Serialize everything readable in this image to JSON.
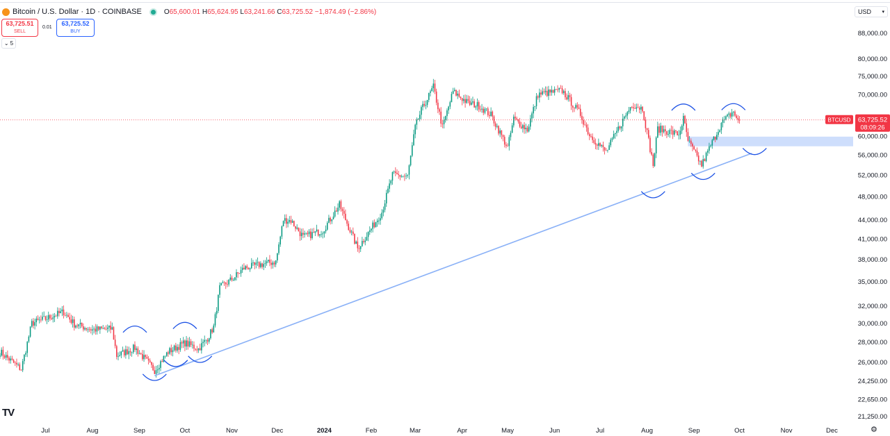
{
  "header": {
    "symbol": "Bitcoin / U.S. Dollar · 1D · COINBASE",
    "o_label": "O",
    "o_value": "65,600.01",
    "h_label": "H",
    "h_value": "65,624.95",
    "l_label": "L",
    "l_value": "63,241.66",
    "c_label": "C",
    "c_value": "63,725.52",
    "change": "−1,874.49 (−2.86%)"
  },
  "trade": {
    "sell_price": "63,725.51",
    "sell_label": "SELL",
    "spread": "0.01",
    "buy_price": "63,725.52",
    "buy_label": "BUY",
    "collapse_label": "5"
  },
  "currency_selector": "USD",
  "price_tag": {
    "symbol": "BTCUSD",
    "price": "63,725.52",
    "countdown": "08:09:26"
  },
  "logo": "TV",
  "colors": {
    "up": "#089981",
    "down": "#f23645",
    "drawing": "#8ab1f7",
    "zone": "#c6d8fb",
    "arc": "#1e53e5"
  },
  "chart_data": {
    "type": "candlestick",
    "y_scale": "log",
    "ylim": [
      20800,
      92000
    ],
    "y_ticks": [
      "88,000.00",
      "80,000.00",
      "75,000.00",
      "70,000.00",
      "60,000.00",
      "56,000.00",
      "52,000.00",
      "48,000.00",
      "44,000.00",
      "41,000.00",
      "38,000.00",
      "35,000.00",
      "32,000.00",
      "30,000.00",
      "28,000.00",
      "26,000.00",
      "24,250.00",
      "22,650.00",
      "21,250.00"
    ],
    "x_ticks": [
      "Jul",
      "Aug",
      "Sep",
      "Oct",
      "Nov",
      "Dec",
      "2024",
      "Feb",
      "Mar",
      "Apr",
      "May",
      "Jun",
      "Jul",
      "Aug",
      "Sep",
      "Oct",
      "Nov",
      "Dec"
    ],
    "x_tick_dates": [
      "2023-07-01",
      "2023-08-01",
      "2023-09-01",
      "2023-10-01",
      "2023-11-01",
      "2023-12-01",
      "2024-01-01",
      "2024-02-01",
      "2024-03-01",
      "2024-04-01",
      "2024-05-01",
      "2024-06-01",
      "2024-07-01",
      "2024-08-01",
      "2024-09-01",
      "2024-10-01",
      "2024-11-01",
      "2024-12-01"
    ],
    "xlim": [
      "2023-06-01",
      "2024-12-15"
    ],
    "last_price": 63725.52,
    "anchors": [
      [
        "2023-06-01",
        27000
      ],
      [
        "2023-06-15",
        25300
      ],
      [
        "2023-06-22",
        30000
      ],
      [
        "2023-07-01",
        30500
      ],
      [
        "2023-07-13",
        31300
      ],
      [
        "2023-07-20",
        29900
      ],
      [
        "2023-08-01",
        29300
      ],
      [
        "2023-08-14",
        29400
      ],
      [
        "2023-08-17",
        26600
      ],
      [
        "2023-08-29",
        27400
      ],
      [
        "2023-09-11",
        25200
      ],
      [
        "2023-09-20",
        27000
      ],
      [
        "2023-10-01",
        27900
      ],
      [
        "2023-10-10",
        27300
      ],
      [
        "2023-10-16",
        28400
      ],
      [
        "2023-10-20",
        29600
      ],
      [
        "2023-10-24",
        34200
      ],
      [
        "2023-11-01",
        35300
      ],
      [
        "2023-11-09",
        36800
      ],
      [
        "2023-11-20",
        37300
      ],
      [
        "2023-11-30",
        37700
      ],
      [
        "2023-12-05",
        44000
      ],
      [
        "2023-12-10",
        43900
      ],
      [
        "2023-12-18",
        41300
      ],
      [
        "2023-12-31",
        42300
      ],
      [
        "2024-01-11",
        46500
      ],
      [
        "2024-01-23",
        39600
      ],
      [
        "2024-02-01",
        42600
      ],
      [
        "2024-02-08",
        45300
      ],
      [
        "2024-02-15",
        52000
      ],
      [
        "2024-02-25",
        51700
      ],
      [
        "2024-03-01",
        62000
      ],
      [
        "2024-03-05",
        66000
      ],
      [
        "2024-03-13",
        72000
      ],
      [
        "2024-03-19",
        62000
      ],
      [
        "2024-03-26",
        70800
      ],
      [
        "2024-04-05",
        67800
      ],
      [
        "2024-04-12",
        67200
      ],
      [
        "2024-04-20",
        64900
      ],
      [
        "2024-05-01",
        57500
      ],
      [
        "2024-05-05",
        64000
      ],
      [
        "2024-05-14",
        61500
      ],
      [
        "2024-05-21",
        70100
      ],
      [
        "2024-06-06",
        71000
      ],
      [
        "2024-06-18",
        65100
      ],
      [
        "2024-06-24",
        60300
      ],
      [
        "2024-07-05",
        56600
      ],
      [
        "2024-07-15",
        63000
      ],
      [
        "2024-07-22",
        67500
      ],
      [
        "2024-07-29",
        66500
      ],
      [
        "2024-08-05",
        54000
      ],
      [
        "2024-08-08",
        61700
      ],
      [
        "2024-08-22",
        60400
      ],
      [
        "2024-08-25",
        64000
      ],
      [
        "2024-08-28",
        59000
      ],
      [
        "2024-09-06",
        53900
      ],
      [
        "2024-09-12",
        58000
      ],
      [
        "2024-09-19",
        62900
      ],
      [
        "2024-09-27",
        65800
      ],
      [
        "2024-09-30",
        63300
      ],
      [
        "2024-10-01",
        63725
      ]
    ],
    "trendline": [
      [
        "2023-09-11",
        24700
      ],
      [
        "2024-10-09",
        56300
      ]
    ],
    "zone": {
      "from": "2024-08-28",
      "to": "2024-12-15",
      "low": 57800,
      "high": 59900
    },
    "arcs": [
      {
        "date": "2023-08-29",
        "price": 29300,
        "dir": "top"
      },
      {
        "date": "2023-09-11",
        "price": 24600,
        "dir": "bottom"
      },
      {
        "date": "2023-09-25",
        "price": 25900,
        "dir": "bottom"
      },
      {
        "date": "2023-10-01",
        "price": 29700,
        "dir": "top"
      },
      {
        "date": "2023-10-11",
        "price": 26300,
        "dir": "bottom"
      },
      {
        "date": "2024-08-05",
        "price": 48400,
        "dir": "bottom"
      },
      {
        "date": "2024-08-25",
        "price": 66700,
        "dir": "top"
      },
      {
        "date": "2024-09-07",
        "price": 51800,
        "dir": "bottom"
      },
      {
        "date": "2024-09-27",
        "price": 66800,
        "dir": "top"
      },
      {
        "date": "2024-10-11",
        "price": 56800,
        "dir": "bottom"
      }
    ]
  }
}
